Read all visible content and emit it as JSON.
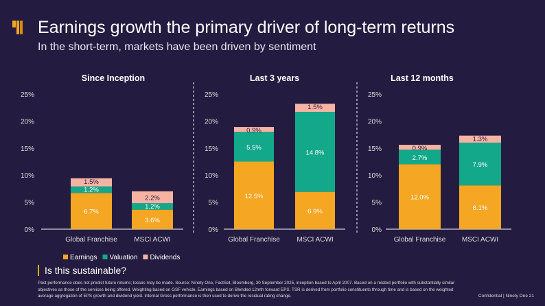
{
  "header": {
    "title": "Earnings growth the primary driver of long-term returns",
    "subtitle": "In the short-term, markets have been driven by sentiment"
  },
  "colors": {
    "background": "#241c40",
    "Earnings": "#f5a623",
    "Valuation": "#14a88a",
    "Dividends": "#f5b3a3",
    "text": "#ffffff"
  },
  "chart_data": [
    {
      "type": "bar",
      "stacked": true,
      "title": "Since Inception",
      "categories": [
        "Global Franchise",
        "MSCI ACWI"
      ],
      "ylim": [
        0,
        25
      ],
      "yticks": [
        "0%",
        "5%",
        "10%",
        "15%",
        "20%",
        "25%"
      ],
      "series": [
        {
          "name": "Earnings",
          "values": [
            6.7,
            3.6
          ],
          "labels": [
            "6.7%",
            "3.6%"
          ]
        },
        {
          "name": "Valuation",
          "values": [
            1.2,
            1.2
          ],
          "labels": [
            "1.2%",
            "1.2%"
          ]
        },
        {
          "name": "Dividends",
          "values": [
            1.5,
            2.2
          ],
          "labels": [
            "1.5%",
            "2.2%"
          ]
        }
      ]
    },
    {
      "type": "bar",
      "stacked": true,
      "title": "Last 3 years",
      "categories": [
        "Global Franchise",
        "MSCI ACWI"
      ],
      "ylim": [
        0,
        25
      ],
      "yticks": [
        "0%",
        "5%",
        "10%",
        "15%",
        "20%",
        "25%"
      ],
      "series": [
        {
          "name": "Earnings",
          "values": [
            12.5,
            6.9
          ],
          "labels": [
            "12.5%",
            "6.9%"
          ]
        },
        {
          "name": "Valuation",
          "values": [
            5.5,
            14.8
          ],
          "labels": [
            "5.5%",
            "14.8%"
          ]
        },
        {
          "name": "Dividends",
          "values": [
            0.9,
            1.5
          ],
          "labels": [
            "0.9%",
            "1.5%"
          ]
        }
      ]
    },
    {
      "type": "bar",
      "stacked": true,
      "title": "Last 12 months",
      "categories": [
        "Global Franchise",
        "MSCI ACWI"
      ],
      "ylim": [
        0,
        25
      ],
      "yticks": [
        "0%",
        "5%",
        "10%",
        "15%",
        "20%",
        "25%"
      ],
      "series": [
        {
          "name": "Earnings",
          "values": [
            12.0,
            8.1
          ],
          "labels": [
            "12.0%",
            "8.1%"
          ]
        },
        {
          "name": "Valuation",
          "values": [
            2.7,
            7.9
          ],
          "labels": [
            "2.7%",
            "7.9%"
          ]
        },
        {
          "name": "Dividends",
          "values": [
            0.9,
            1.3
          ],
          "labels": [
            "0.9%",
            "1.3%"
          ]
        }
      ]
    }
  ],
  "legend": [
    "Earnings",
    "Valuation",
    "Dividends"
  ],
  "question": "Is this sustainable?",
  "footnote": "Past performance does not predict future returns; losses may be made. Source: Ninety One, FactSet, Bloomberg, 30 September 2025, inception based to April 2007. Based on a related portfolio with substantially similar objectives as those of the services being offered. Weighting based on GSF vehicle. Earnings based on Blended 12mth forward EPS. TSR is derived from portfolio constituents through time and is based on the weighted average aggregation of EPS growth and dividend yield. Internal Gross performance is then used to derive the residual rating change.",
  "confidential": "Confidential | Ninety One   21"
}
